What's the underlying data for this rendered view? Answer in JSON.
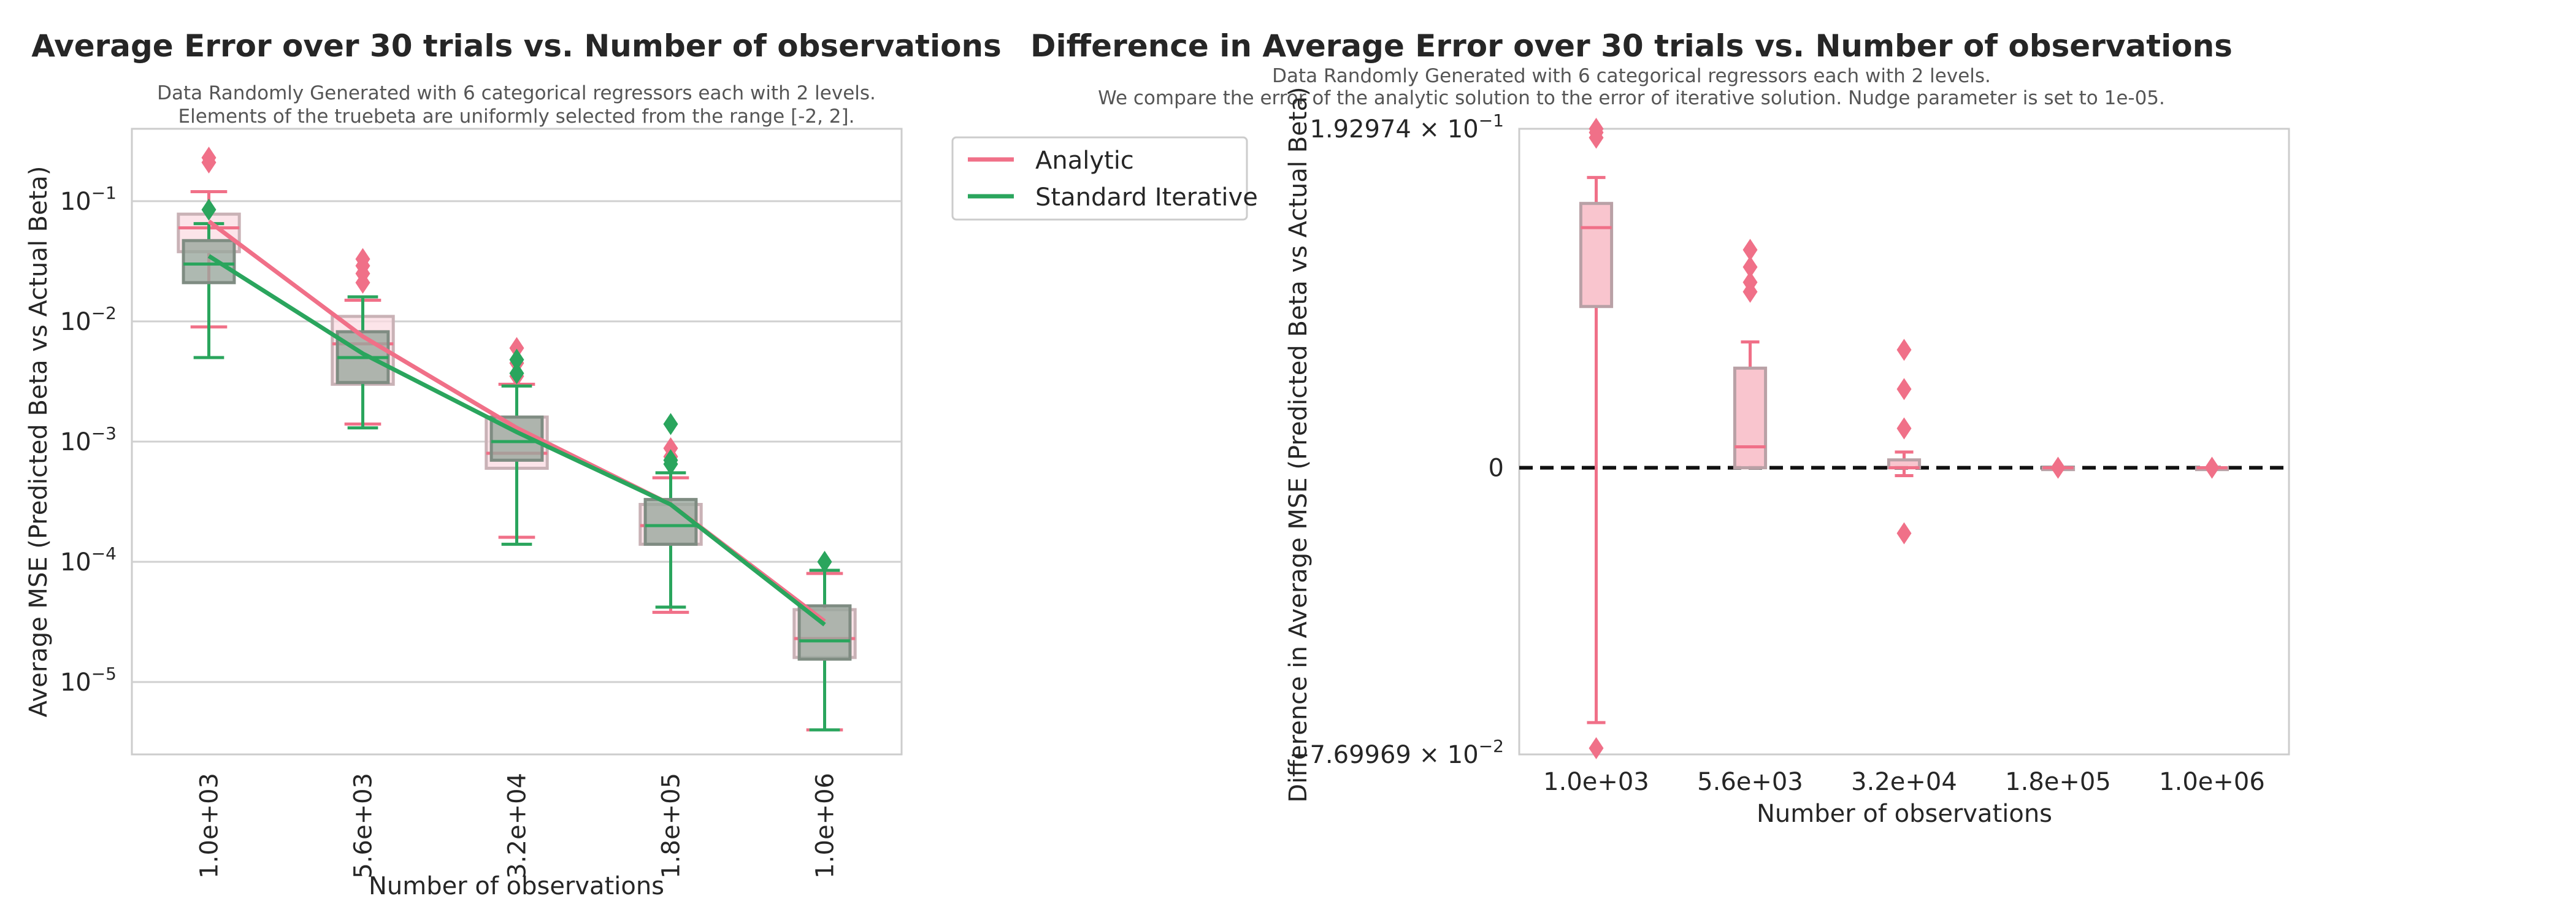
{
  "chart_data": [
    {
      "type": "box",
      "title": "Average Error over 30 trials vs. Number of observations",
      "subtitle_lines": [
        "Data Randomly Generated with 6 categorical regressors each with 2 levels.",
        "Elements of the truebeta are uniformly selected from the range [-2, 2]."
      ],
      "xlabel": "Number of observations",
      "ylabel": "Average MSE (Predicted Beta vs Actual Beta)",
      "yscale": "log",
      "ylim": [
        2.5e-06,
        0.4
      ],
      "grid": "horizontal",
      "categories": [
        "1.0e+03",
        "5.6e+03",
        "3.2e+04",
        "1.8e+05",
        "1.0e+06"
      ],
      "y_ticks": [
        {
          "value": 1e-05,
          "base": "10",
          "exp": "−5"
        },
        {
          "value": 0.0001,
          "base": "10",
          "exp": "−4"
        },
        {
          "value": 0.001,
          "base": "10",
          "exp": "−3"
        },
        {
          "value": 0.01,
          "base": "10",
          "exp": "−2"
        },
        {
          "value": 0.1,
          "base": "10",
          "exp": "−1"
        }
      ],
      "legend": {
        "position": "outside-right",
        "entries": [
          "Analytic",
          "Standard Iterative"
        ]
      },
      "series": [
        {
          "name": "Analytic",
          "color": "#f07088",
          "mean_line": [
            0.068,
            0.0075,
            0.0013,
            0.0003,
            3.2e-05
          ],
          "boxes": [
            {
              "whislo": 0.009,
              "q1": 0.038,
              "median": 0.06,
              "q3": 0.078,
              "whishi": 0.12,
              "fliers": [
                0.21,
                0.23
              ]
            },
            {
              "whislo": 0.0014,
              "q1": 0.003,
              "median": 0.0065,
              "q3": 0.011,
              "whishi": 0.015,
              "fliers": [
                0.021,
                0.025,
                0.029,
                0.033
              ]
            },
            {
              "whislo": 0.00016,
              "q1": 0.0006,
              "median": 0.0008,
              "q3": 0.0016,
              "whishi": 0.003,
              "fliers": [
                0.0035,
                0.0045,
                0.006
              ]
            },
            {
              "whislo": 3.8e-05,
              "q1": 0.00014,
              "median": 0.0002,
              "q3": 0.0003,
              "whishi": 0.0005,
              "fliers": [
                0.00075,
                0.00088
              ]
            },
            {
              "whislo": 4e-06,
              "q1": 1.6e-05,
              "median": 2.3e-05,
              "q3": 4e-05,
              "whishi": 8e-05,
              "fliers": []
            }
          ]
        },
        {
          "name": "Standard Iterative",
          "color": "#2aa55d",
          "mean_line": [
            0.035,
            0.0054,
            0.0012,
            0.0003,
            3e-05
          ],
          "boxes": [
            {
              "whislo": 0.005,
              "q1": 0.021,
              "median": 0.03,
              "q3": 0.047,
              "whishi": 0.065,
              "fliers": [
                0.085
              ]
            },
            {
              "whislo": 0.0013,
              "q1": 0.0031,
              "median": 0.005,
              "q3": 0.0082,
              "whishi": 0.016,
              "fliers": []
            },
            {
              "whislo": 0.00014,
              "q1": 0.0007,
              "median": 0.001,
              "q3": 0.0016,
              "whishi": 0.0029,
              "fliers": [
                0.0037,
                0.0048
              ]
            },
            {
              "whislo": 4.2e-05,
              "q1": 0.00014,
              "median": 0.0002,
              "q3": 0.00033,
              "whishi": 0.00055,
              "fliers": [
                0.00065,
                0.0007,
                0.0014
              ]
            },
            {
              "whislo": 4e-06,
              "q1": 1.55e-05,
              "median": 2.2e-05,
              "q3": 4.3e-05,
              "whishi": 8.5e-05,
              "fliers": [
                0.0001
              ]
            }
          ]
        }
      ]
    },
    {
      "type": "box",
      "title": "Difference in Average Error over 30 trials vs. Number of observations",
      "subtitle_lines": [
        "Data Randomly Generated with 6 categorical regressors each with 2 levels.",
        "We compare the error of the analytic solution to the error of iterative solution. Nudge parameter is set to 1e-05."
      ],
      "xlabel": "Number of observations",
      "ylabel": "Difference in Average MSE (Predicted Beta vs Actual Beta)",
      "yscale": "symlog",
      "ylim": [
        -0.0769969,
        0.192974
      ],
      "reference_line": {
        "value": 0,
        "style": "dashed"
      },
      "categories": [
        "1.0e+03",
        "5.6e+03",
        "3.2e+04",
        "1.8e+05",
        "1.0e+06"
      ],
      "y_ticks": [
        {
          "value": 0.192974,
          "label": "1.92974 × 10",
          "exp": "−1"
        },
        {
          "value": 0,
          "label": "0",
          "exp": ""
        },
        {
          "value": -0.0769969,
          "label": "−7.69969 × 10",
          "exp": "−2"
        }
      ],
      "series": [
        {
          "name": "Analytic",
          "color": "#f07088",
          "boxes": [
            {
              "whislo": -0.044,
              "q1": 0.0085,
              "median": 0.034,
              "q3": 0.052,
              "whishi": 0.082,
              "fliers": [
                -0.069,
                0.165,
                0.181,
                0.193
              ]
            },
            {
              "whislo": 0.0,
              "q1": 0.0,
              "median": 0.0008,
              "q3": 0.0038,
              "whishi": 0.0048,
              "fliers": [
                0.011,
                0.013,
                0.017,
                0.023
              ]
            },
            {
              "whislo": -0.0003,
              "q1": 0.0,
              "median": 0.0,
              "q3": 0.0003,
              "whishi": 0.0006,
              "fliers": [
                -0.0025,
                0.0015,
                0.003,
                0.0045
              ]
            },
            {
              "whislo": 0.0,
              "q1": 0.0,
              "median": 0.0,
              "q3": 0.0,
              "whishi": 0.0,
              "fliers": [
                0.0
              ]
            },
            {
              "whislo": 0.0,
              "q1": 0.0,
              "median": 0.0,
              "q3": 0.0,
              "whishi": 0.0,
              "fliers": [
                0.0
              ]
            }
          ]
        }
      ]
    }
  ]
}
